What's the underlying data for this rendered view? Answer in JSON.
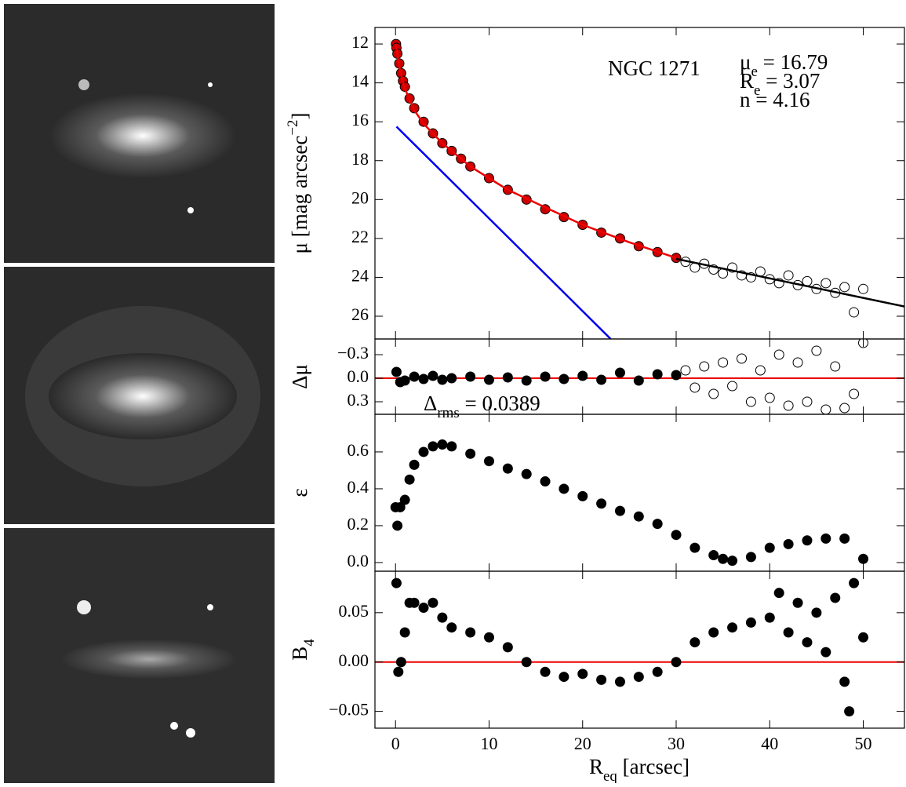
{
  "chart_data": [
    {
      "type": "scatter",
      "xlim": [
        -2.2,
        54.4
      ],
      "ylim": [
        27.17,
        11.15
      ],
      "yticks": [
        12,
        14,
        16,
        18,
        20,
        22,
        24,
        26
      ],
      "ylabel": [
        {
          "text": "μ [mag arcsec"
        },
        {
          "text": "−2",
          "sup": true
        },
        {
          "text": "]"
        }
      ],
      "annotations": [
        {
          "text": "NGC 1271"
        }
      ],
      "fit_params": [
        [
          {
            "text": "μ"
          },
          {
            "text": "e",
            "sub": true
          },
          {
            "text": " = 16.79"
          }
        ],
        [
          {
            "text": "R"
          },
          {
            "text": "e",
            "sub": true
          },
          {
            "text": " = 3.07"
          }
        ],
        [
          {
            "text": "n"
          },
          {
            "text": "    = 4.16"
          }
        ]
      ],
      "series": [
        {
          "style": "line",
          "color": "#0000ee",
          "x": [
            0.1,
            23
          ],
          "values": [
            16.25,
            27.17
          ]
        },
        {
          "style": "filled",
          "color": "#cc0000",
          "x": [
            0.05,
            0.1,
            0.2,
            0.4,
            0.6,
            0.8,
            1,
            1.5,
            2,
            3,
            4,
            5,
            6,
            7,
            8,
            10,
            12,
            14,
            16,
            18,
            20,
            22,
            24,
            26,
            28,
            30
          ],
          "values": [
            12.0,
            12.2,
            12.5,
            13.0,
            13.5,
            13.9,
            14.2,
            14.8,
            15.3,
            16.0,
            16.6,
            17.1,
            17.5,
            17.9,
            18.3,
            18.9,
            19.5,
            20.0,
            20.5,
            20.9,
            21.3,
            21.7,
            22.0,
            22.4,
            22.7,
            23.0
          ]
        },
        {
          "style": "open",
          "color": "#ffffff",
          "x": [
            31,
            32,
            33,
            34,
            35,
            36,
            37,
            38,
            39,
            40,
            41,
            42,
            43,
            44,
            45,
            46,
            47,
            48,
            49,
            50
          ],
          "values": [
            23.2,
            23.5,
            23.3,
            23.6,
            23.8,
            23.5,
            23.9,
            24.0,
            23.7,
            24.1,
            24.3,
            23.9,
            24.4,
            24.2,
            24.6,
            24.3,
            24.8,
            24.5,
            25.8,
            24.6
          ]
        },
        {
          "style": "line",
          "color": "#ee0000",
          "x": [
            0.05,
            0.2,
            0.5,
            1,
            2,
            3,
            5,
            8,
            12,
            16,
            20,
            25,
            30
          ],
          "values": [
            12.0,
            12.6,
            13.4,
            14.3,
            15.4,
            16.1,
            17.1,
            18.3,
            19.5,
            20.4,
            21.3,
            22.2,
            23.0
          ]
        },
        {
          "style": "line",
          "color": "#000000",
          "x": [
            30,
            54.4
          ],
          "values": [
            23.05,
            25.5
          ]
        }
      ]
    },
    {
      "type": "scatter",
      "xlim": [
        -2.2,
        54.4
      ],
      "ylim": [
        0.46,
        -0.5
      ],
      "yticks": [
        {
          "value": -0.3,
          "label": "−0.3"
        },
        {
          "value": 0,
          "label": "0.0"
        },
        0.3
      ],
      "ylabel": [
        {
          "text": "Δμ"
        }
      ],
      "hline": 0,
      "hline_color": "#ee0000",
      "annotations": [
        {
          "text": "Δ"
        },
        {
          "text": "rms",
          "sub": true
        },
        {
          "text": " = 0.0389"
        }
      ],
      "series": [
        {
          "style": "filled",
          "color": "#000000",
          "x": [
            0.1,
            0.5,
            1,
            2,
            3,
            4,
            5,
            6,
            8,
            10,
            12,
            14,
            16,
            18,
            20,
            22,
            24,
            26,
            28,
            30
          ],
          "values": [
            -0.08,
            0.05,
            0.03,
            -0.02,
            0.01,
            -0.03,
            0.02,
            0.0,
            -0.02,
            0.02,
            -0.01,
            0.03,
            -0.02,
            0.01,
            -0.03,
            0.02,
            -0.07,
            0.03,
            -0.05,
            -0.04
          ]
        },
        {
          "style": "open",
          "color": "#ffffff",
          "x": [
            31,
            32,
            33,
            34,
            35,
            36,
            37,
            38,
            39,
            40,
            41,
            42,
            43,
            44,
            45,
            46,
            47,
            48,
            49,
            50
          ],
          "values": [
            -0.1,
            0.12,
            -0.15,
            0.2,
            -0.2,
            0.1,
            -0.25,
            0.3,
            -0.1,
            0.25,
            -0.3,
            0.35,
            -0.2,
            0.3,
            -0.35,
            0.4,
            -0.15,
            0.38,
            0.2,
            -0.45
          ]
        }
      ]
    },
    {
      "type": "scatter",
      "xlim": [
        -2.2,
        54.4
      ],
      "ylim": [
        -0.047,
        0.804
      ],
      "yticks": [
        {
          "value": 0,
          "label": "0.0"
        },
        0.2,
        0.4,
        0.6
      ],
      "ylabel": [
        {
          "text": "ε"
        }
      ],
      "series": [
        {
          "style": "filled",
          "color": "#000000",
          "x": [
            0,
            0.2,
            0.5,
            1,
            1.5,
            2,
            3,
            4,
            5,
            6,
            8,
            10,
            12,
            14,
            16,
            18,
            20,
            22,
            24,
            26,
            28,
            30,
            32,
            34,
            35,
            36,
            38,
            40,
            42,
            44,
            46,
            48,
            50
          ],
          "values": [
            0.3,
            0.2,
            0.3,
            0.34,
            0.45,
            0.53,
            0.6,
            0.63,
            0.64,
            0.63,
            0.59,
            0.55,
            0.51,
            0.48,
            0.44,
            0.4,
            0.36,
            0.32,
            0.28,
            0.25,
            0.21,
            0.15,
            0.08,
            0.04,
            0.02,
            0.01,
            0.03,
            0.08,
            0.1,
            0.12,
            0.13,
            0.13,
            0.02
          ]
        }
      ]
    },
    {
      "type": "scatter",
      "xlim": [
        -2.2,
        54.4
      ],
      "ylim": [
        -0.067,
        0.092
      ],
      "yticks": [
        {
          "value": -0.05,
          "label": "−0.05"
        },
        {
          "value": 0,
          "label": "0.00"
        },
        0.05
      ],
      "xticks": [
        0,
        10,
        20,
        30,
        40,
        50
      ],
      "ylabel": [
        {
          "text": "B"
        },
        {
          "text": "4",
          "sub": true
        }
      ],
      "xlabel": [
        {
          "text": "R"
        },
        {
          "text": "eq",
          "sub": true
        },
        {
          "text": " [arcsec]"
        }
      ],
      "hline": 0,
      "hline_color": "#ee0000",
      "series": [
        {
          "style": "filled",
          "color": "#000000",
          "x": [
            0.1,
            0.3,
            0.6,
            1,
            1.5,
            2,
            3,
            4,
            5,
            6,
            8,
            10,
            12,
            14,
            16,
            18,
            20,
            22,
            24,
            26,
            28,
            30,
            32,
            34,
            36,
            38,
            40,
            41,
            42,
            43,
            44,
            45,
            46,
            47,
            48,
            48.5,
            49,
            50
          ],
          "values": [
            0.08,
            -0.01,
            0.0,
            0.03,
            0.06,
            0.06,
            0.055,
            0.06,
            0.045,
            0.035,
            0.03,
            0.025,
            0.015,
            0.0,
            -0.01,
            -0.015,
            -0.012,
            -0.018,
            -0.02,
            -0.015,
            -0.01,
            0.0,
            0.02,
            0.03,
            0.035,
            0.04,
            0.045,
            0.07,
            0.03,
            0.06,
            0.02,
            0.05,
            0.01,
            0.065,
            -0.02,
            -0.05,
            0.08,
            0.025
          ]
        }
      ]
    }
  ]
}
